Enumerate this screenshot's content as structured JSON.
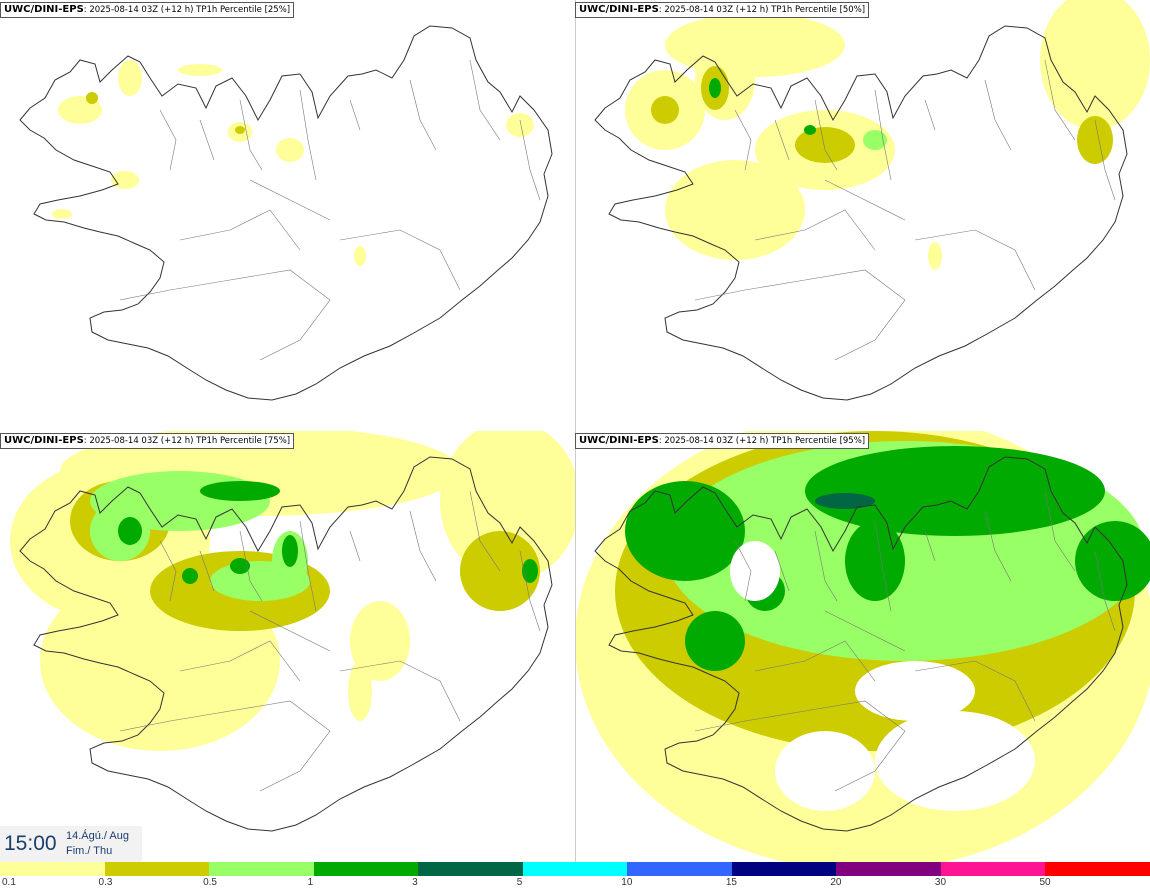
{
  "panels": [
    {
      "source": "UWC/DINI-EPS",
      "title_rest": ": 2025-08-14 03Z (+12 h) TP1h Percentile [25%]"
    },
    {
      "source": "UWC/DINI-EPS",
      "title_rest": ": 2025-08-14 03Z (+12 h) TP1h Percentile [50%]"
    },
    {
      "source": "UWC/DINI-EPS",
      "title_rest": ": 2025-08-14 03Z (+12 h) TP1h Percentile [75%]"
    },
    {
      "source": "UWC/DINI-EPS",
      "title_rest": ": 2025-08-14 03Z (+12 h) TP1h Percentile [95%]"
    }
  ],
  "valid_time": {
    "time": "15:00",
    "date_line1": "14.Ágú./ Aug",
    "date_line2": "Fim./ Thu"
  },
  "legend": {
    "colors": [
      "#ffff99",
      "#cccc00",
      "#99ff66",
      "#00aa00",
      "#006644",
      "#00ffff",
      "#3366ff",
      "#000080",
      "#800080",
      "#ff1493",
      "#ff0000"
    ],
    "labels": [
      "0.1",
      "0.3",
      "0.5",
      "1",
      "3",
      "5",
      "10",
      "15",
      "20",
      "30",
      "50"
    ]
  }
}
